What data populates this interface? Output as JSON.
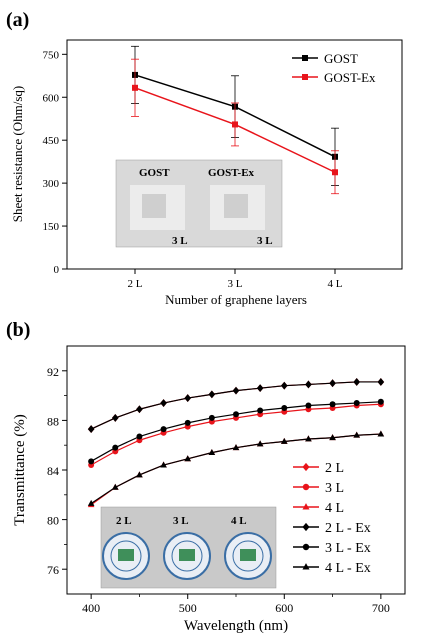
{
  "chart_data": [
    {
      "type": "line",
      "panel_label": "(a)",
      "xlabel": "Number of graphene layers",
      "ylabel": "Sheet resistance (Ohm/sq)",
      "categories": [
        "2 L",
        "3 L",
        "4 L"
      ],
      "ylim": [
        0,
        800
      ],
      "yticks": [
        0,
        150,
        300,
        450,
        600,
        750
      ],
      "grid": false,
      "legend_position": "top-right",
      "series": [
        {
          "name": "GOST",
          "color": "#000000",
          "marker": "square",
          "values": [
            678,
            567,
            392
          ],
          "error": [
            100,
            108,
            100
          ]
        },
        {
          "name": "GOST-Ex",
          "color": "#e8141b",
          "marker": "square",
          "values": [
            633,
            505,
            338
          ],
          "error": [
            100,
            75,
            75
          ]
        }
      ],
      "inset": {
        "labels": [
          "GOST",
          "GOST-Ex"
        ],
        "sublabels": [
          "3 L",
          "3 L"
        ]
      }
    },
    {
      "type": "line",
      "panel_label": "(b)",
      "xlabel": "Wavelength (nm)",
      "ylabel": "Transmittance (%)",
      "xlim": [
        375,
        725
      ],
      "ylim": [
        74,
        94
      ],
      "xticks": [
        400,
        500,
        600,
        700
      ],
      "yticks": [
        76,
        80,
        84,
        88,
        92
      ],
      "grid": false,
      "legend_position": "bottom-right",
      "x": [
        400,
        425,
        450,
        475,
        500,
        525,
        550,
        575,
        600,
        625,
        650,
        675,
        700
      ],
      "series": [
        {
          "name": "2 L",
          "color": "#e8141b",
          "marker": "diamond",
          "values": [
            87.3,
            88.2,
            88.9,
            89.4,
            89.8,
            90.1,
            90.4,
            90.6,
            90.8,
            90.9,
            91.0,
            91.1,
            91.1
          ]
        },
        {
          "name": "3 L",
          "color": "#e8141b",
          "marker": "circle",
          "values": [
            84.4,
            85.5,
            86.4,
            87.0,
            87.5,
            87.9,
            88.2,
            88.5,
            88.7,
            88.9,
            89.0,
            89.2,
            89.3
          ]
        },
        {
          "name": "4 L",
          "color": "#e8141b",
          "marker": "triangle",
          "values": [
            81.2,
            82.6,
            83.6,
            84.4,
            84.9,
            85.4,
            85.8,
            86.1,
            86.3,
            86.5,
            86.6,
            86.8,
            86.9
          ]
        },
        {
          "name": "2 L - Ex",
          "color": "#000000",
          "marker": "diamond",
          "values": [
            87.3,
            88.2,
            88.9,
            89.4,
            89.8,
            90.1,
            90.4,
            90.6,
            90.8,
            90.9,
            91.0,
            91.1,
            91.1
          ]
        },
        {
          "name": "3 L - Ex",
          "color": "#000000",
          "marker": "circle",
          "values": [
            84.7,
            85.8,
            86.7,
            87.3,
            87.8,
            88.2,
            88.5,
            88.8,
            89.0,
            89.2,
            89.3,
            89.4,
            89.5
          ]
        },
        {
          "name": "4 L - Ex",
          "color": "#000000",
          "marker": "triangle",
          "values": [
            81.3,
            82.6,
            83.6,
            84.4,
            84.9,
            85.4,
            85.8,
            86.1,
            86.3,
            86.5,
            86.6,
            86.8,
            86.9
          ]
        }
      ],
      "inset": {
        "labels": [
          "2 L",
          "3 L",
          "4 L"
        ]
      }
    }
  ]
}
